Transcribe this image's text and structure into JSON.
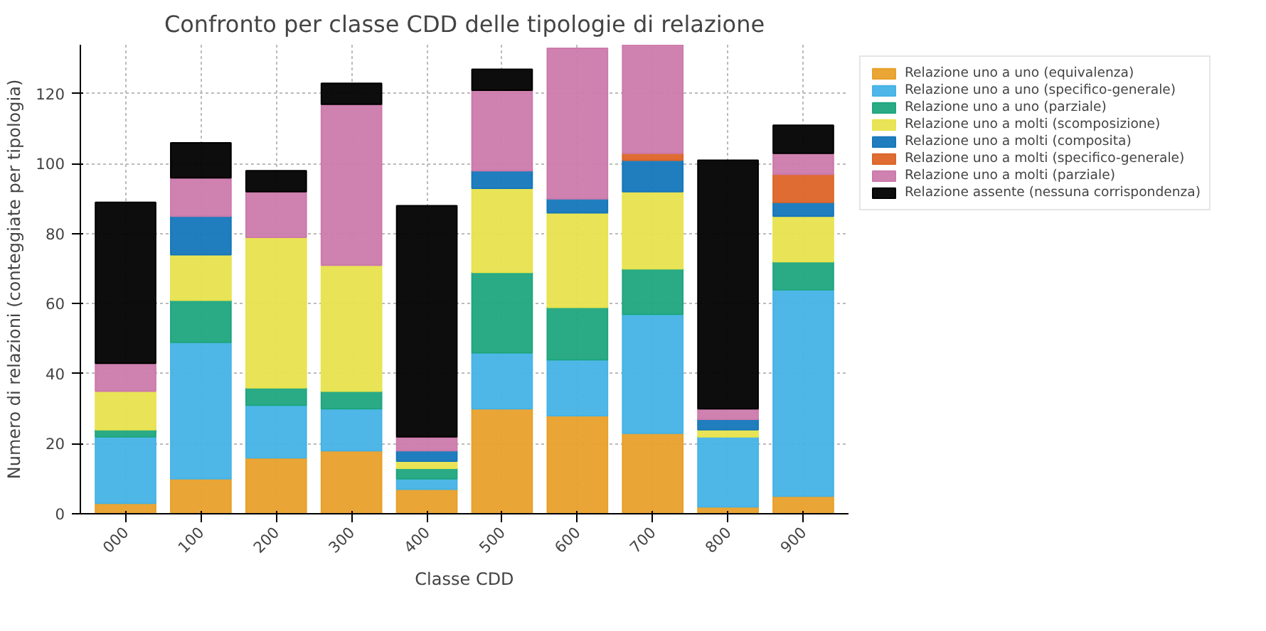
{
  "chart_data": {
    "type": "bar",
    "stacked": true,
    "title": "Confronto per classe CDD delle tipologie di relazione",
    "xlabel": "Classe CDD",
    "ylabel": "Numero di relazioni (conteggiate per tipologia)",
    "categories": [
      "000",
      "100",
      "200",
      "300",
      "400",
      "500",
      "600",
      "700",
      "800",
      "900"
    ],
    "ylim": [
      0,
      134
    ],
    "yticks": [
      0,
      20,
      40,
      60,
      80,
      100,
      120
    ],
    "grid": true,
    "legend": "right",
    "series": [
      {
        "name": "Relazione uno a uno (equivalenza)",
        "color": "#e8a02a",
        "values": [
          3,
          10,
          16,
          18,
          7,
          30,
          28,
          23,
          2,
          5
        ]
      },
      {
        "name": "Relazione uno a uno (specifico-generale)",
        "color": "#45b3e6",
        "values": [
          19,
          39,
          15,
          12,
          3,
          16,
          16,
          34,
          20,
          59
        ]
      },
      {
        "name": "Relazione uno a uno (parziale)",
        "color": "#1fa67e",
        "values": [
          2,
          12,
          5,
          5,
          3,
          23,
          15,
          13,
          null,
          8
        ]
      },
      {
        "name": "Relazione uno a molti (scomposizione)",
        "color": "#e8e34e",
        "values": [
          11,
          13,
          43,
          36,
          2,
          24,
          27,
          22,
          2,
          13
        ]
      },
      {
        "name": "Relazione uno a molti (composita)",
        "color": "#1577bb",
        "values": [
          null,
          11,
          null,
          null,
          3,
          5,
          4,
          9,
          3,
          4
        ]
      },
      {
        "name": "Relazione uno a molti (specifico-generale)",
        "color": "#dd6528",
        "values": [
          null,
          null,
          null,
          null,
          null,
          null,
          null,
          2,
          null,
          8
        ]
      },
      {
        "name": "Relazione uno a molti (parziale)",
        "color": "#cc7aab",
        "values": [
          8,
          11,
          13,
          46,
          4,
          23,
          43,
          31,
          3,
          6
        ]
      },
      {
        "name": "Relazione assente (nessuna corrispondenza)",
        "color": "#000000",
        "values": [
          46,
          10,
          6,
          6,
          66,
          6,
          null,
          null,
          71,
          8
        ]
      }
    ]
  }
}
